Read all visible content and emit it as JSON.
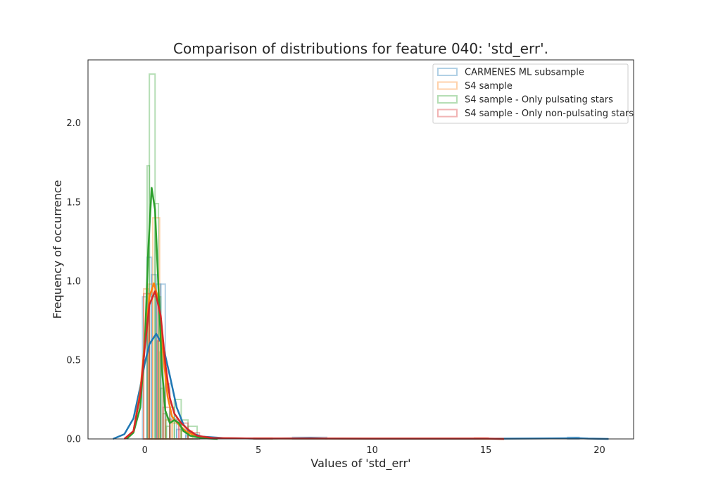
{
  "chart_data": {
    "type": "histogram",
    "title": "Comparison of distributions for feature 040: 'std_err'.",
    "xlabel": "Values of 'std_err'",
    "ylabel": "Frequency of occurrence",
    "xlim": [
      -2.5,
      21.5
    ],
    "ylim": [
      0,
      2.4
    ],
    "x_ticks": [
      0,
      5,
      10,
      15,
      20
    ],
    "y_ticks": [
      0.0,
      0.5,
      1.0,
      1.5,
      2.0
    ],
    "x_tick_labels": [
      "0",
      "5",
      "10",
      "15",
      "20"
    ],
    "y_tick_labels": [
      "0.0",
      "0.5",
      "1.0",
      "1.5",
      "2.0"
    ],
    "grid": false,
    "legend_position": "top-right",
    "series": [
      {
        "name": "CARMENES ML subsample",
        "color": "#1f77b4",
        "hist": [
          {
            "x0": -0.1,
            "x1": 0.1,
            "y": 0.9
          },
          {
            "x0": 0.1,
            "x1": 0.3,
            "y": 1.15
          },
          {
            "x0": 0.3,
            "x1": 0.5,
            "y": 1.04
          },
          {
            "x0": 0.5,
            "x1": 0.7,
            "y": 0.98
          },
          {
            "x0": 0.7,
            "x1": 0.9,
            "y": 0.98
          },
          {
            "x0": 0.9,
            "x1": 1.1,
            "y": 0.35
          },
          {
            "x0": 1.1,
            "x1": 1.4,
            "y": 0.13
          },
          {
            "x0": 1.4,
            "x1": 1.8,
            "y": 0.06
          },
          {
            "x0": 1.8,
            "x1": 2.4,
            "y": 0.02
          },
          {
            "x0": 6.5,
            "x1": 8.0,
            "y": 0.01
          },
          {
            "x0": 18.6,
            "x1": 19.1,
            "y": 0.01
          }
        ],
        "kde": [
          [
            -1.4,
            0.0
          ],
          [
            -0.9,
            0.03
          ],
          [
            -0.5,
            0.13
          ],
          [
            -0.2,
            0.33
          ],
          [
            0.0,
            0.48
          ],
          [
            0.2,
            0.6
          ],
          [
            0.5,
            0.665
          ],
          [
            0.8,
            0.59
          ],
          [
            1.1,
            0.4
          ],
          [
            1.4,
            0.2
          ],
          [
            1.7,
            0.09
          ],
          [
            2.0,
            0.04
          ],
          [
            2.5,
            0.015
          ],
          [
            3.5,
            0.005
          ],
          [
            5.0,
            0.002
          ],
          [
            6.5,
            0.004
          ],
          [
            7.3,
            0.006
          ],
          [
            8.0,
            0.003
          ],
          [
            10.0,
            0.001
          ],
          [
            15.0,
            0.001
          ],
          [
            18.5,
            0.004
          ],
          [
            19.0,
            0.005
          ],
          [
            19.5,
            0.002
          ],
          [
            20.4,
            0.0
          ]
        ]
      },
      {
        "name": "S4 sample",
        "color": "#ff7f0e",
        "hist": [
          {
            "x0": -0.05,
            "x1": 0.15,
            "y": 0.95
          },
          {
            "x0": 0.15,
            "x1": 0.35,
            "y": 0.98
          },
          {
            "x0": 0.35,
            "x1": 0.65,
            "y": 1.4
          },
          {
            "x0": 0.65,
            "x1": 0.9,
            "y": 0.55
          },
          {
            "x0": 0.9,
            "x1": 1.2,
            "y": 0.12
          },
          {
            "x0": 1.2,
            "x1": 1.6,
            "y": 0.1
          },
          {
            "x0": 1.6,
            "x1": 2.1,
            "y": 0.05
          },
          {
            "x0": 4.8,
            "x1": 5.6,
            "y": 0.005
          },
          {
            "x0": 14.5,
            "x1": 15.1,
            "y": 0.005
          }
        ],
        "kde": [
          [
            -0.9,
            0.0
          ],
          [
            -0.5,
            0.05
          ],
          [
            -0.2,
            0.3
          ],
          [
            0.0,
            0.62
          ],
          [
            0.2,
            0.9
          ],
          [
            0.4,
            0.985
          ],
          [
            0.6,
            0.88
          ],
          [
            0.8,
            0.55
          ],
          [
            1.0,
            0.27
          ],
          [
            1.2,
            0.14
          ],
          [
            1.5,
            0.09
          ],
          [
            1.8,
            0.05
          ],
          [
            2.2,
            0.02
          ],
          [
            3.0,
            0.005
          ],
          [
            5.0,
            0.003
          ],
          [
            10.0,
            0.002
          ],
          [
            14.5,
            0.002
          ],
          [
            15.8,
            0.0
          ]
        ]
      },
      {
        "name": "S4 sample - Only pulsating stars",
        "color": "#2ca02c",
        "hist": [
          {
            "x0": 0.1,
            "x1": 0.2,
            "y": 1.73
          },
          {
            "x0": 0.2,
            "x1": 0.45,
            "y": 2.31
          },
          {
            "x0": 0.45,
            "x1": 0.6,
            "y": 1.49
          },
          {
            "x0": 0.6,
            "x1": 0.7,
            "y": 0.9
          },
          {
            "x0": 0.7,
            "x1": 0.8,
            "y": 0.32
          },
          {
            "x0": 0.8,
            "x1": 0.95,
            "y": 0.16
          },
          {
            "x0": 0.95,
            "x1": 1.1,
            "y": 0.08
          },
          {
            "x0": 1.1,
            "x1": 1.3,
            "y": 0.2
          },
          {
            "x0": 1.3,
            "x1": 1.6,
            "y": 0.25
          },
          {
            "x0": 1.6,
            "x1": 1.9,
            "y": 0.12
          },
          {
            "x0": 1.9,
            "x1": 2.3,
            "y": 0.08
          }
        ],
        "kde": [
          [
            -0.8,
            0.0
          ],
          [
            -0.5,
            0.04
          ],
          [
            -0.2,
            0.2
          ],
          [
            0.0,
            0.6
          ],
          [
            0.15,
            1.2
          ],
          [
            0.3,
            1.59
          ],
          [
            0.45,
            1.45
          ],
          [
            0.6,
            0.95
          ],
          [
            0.75,
            0.45
          ],
          [
            0.9,
            0.18
          ],
          [
            1.1,
            0.1
          ],
          [
            1.3,
            0.12
          ],
          [
            1.5,
            0.1
          ],
          [
            1.7,
            0.05
          ],
          [
            2.0,
            0.02
          ],
          [
            2.5,
            0.005
          ],
          [
            3.2,
            0.0
          ]
        ]
      },
      {
        "name": "S4 sample - Only non-pulsating stars",
        "color": "#d62728",
        "hist": [
          {
            "x0": -0.05,
            "x1": 0.2,
            "y": 0.92
          },
          {
            "x0": 0.2,
            "x1": 0.55,
            "y": 0.9
          },
          {
            "x0": 0.55,
            "x1": 0.8,
            "y": 0.62
          },
          {
            "x0": 0.8,
            "x1": 1.1,
            "y": 0.2
          },
          {
            "x0": 1.1,
            "x1": 1.5,
            "y": 0.12
          },
          {
            "x0": 1.5,
            "x1": 1.9,
            "y": 0.1
          },
          {
            "x0": 1.9,
            "x1": 2.4,
            "y": 0.04
          },
          {
            "x0": 4.8,
            "x1": 5.6,
            "y": 0.005
          },
          {
            "x0": 14.5,
            "x1": 15.1,
            "y": 0.005
          }
        ],
        "kde": [
          [
            -0.9,
            0.0
          ],
          [
            -0.5,
            0.05
          ],
          [
            -0.2,
            0.28
          ],
          [
            0.0,
            0.58
          ],
          [
            0.2,
            0.85
          ],
          [
            0.45,
            0.935
          ],
          [
            0.7,
            0.78
          ],
          [
            0.9,
            0.48
          ],
          [
            1.1,
            0.26
          ],
          [
            1.3,
            0.16
          ],
          [
            1.6,
            0.1
          ],
          [
            1.9,
            0.06
          ],
          [
            2.3,
            0.02
          ],
          [
            3.0,
            0.005
          ],
          [
            5.0,
            0.003
          ],
          [
            10.0,
            0.002
          ],
          [
            15.0,
            0.002
          ],
          [
            15.8,
            0.0
          ]
        ]
      }
    ]
  }
}
